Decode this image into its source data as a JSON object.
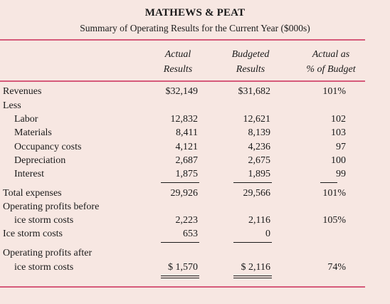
{
  "report": {
    "title": "MATHEWS & PEAT",
    "subtitle": "Summary of Operating Results for the Current Year ($000s)"
  },
  "headers": {
    "actual_1": "Actual",
    "actual_2": "Results",
    "budgeted_1": "Budgeted",
    "budgeted_2": "Results",
    "pct_1": "Actual as",
    "pct_2": "% of Budget"
  },
  "rows": {
    "revenues": {
      "label": "Revenues",
      "actual": "$32,149",
      "budgeted": "$31,682",
      "pct": "101%"
    },
    "less": {
      "label": "Less"
    },
    "labor": {
      "label": "Labor",
      "actual": "12,832",
      "budgeted": "12,621",
      "pct": "102"
    },
    "materials": {
      "label": "Materials",
      "actual": "8,411",
      "budgeted": "8,139",
      "pct": "103"
    },
    "occupancy": {
      "label": "Occupancy costs",
      "actual": "4,121",
      "budgeted": "4,236",
      "pct": "97"
    },
    "depreciation": {
      "label": "Depreciation",
      "actual": "2,687",
      "budgeted": "2,675",
      "pct": "100"
    },
    "interest": {
      "label": "Interest",
      "actual": "1,875",
      "budgeted": "1,895",
      "pct": "99"
    },
    "total_expenses": {
      "label": "Total expenses",
      "actual": "29,926",
      "budgeted": "29,566",
      "pct": "101%"
    },
    "op_before": {
      "label_1": "Operating profits before",
      "label_2": "ice storm costs",
      "actual": "2,223",
      "budgeted": "2,116",
      "pct": "105%"
    },
    "ice_storm": {
      "label": "Ice storm costs",
      "actual": "653",
      "budgeted": "0"
    },
    "op_after": {
      "label_1": "Operating profits after",
      "label_2": "ice storm costs",
      "actual": "$ 1,570",
      "budgeted": "$ 2,116",
      "pct": "74%"
    }
  },
  "colors": {
    "background": "#f7e7e2",
    "rule": "#d65a7a",
    "text": "#1a1a1a"
  }
}
